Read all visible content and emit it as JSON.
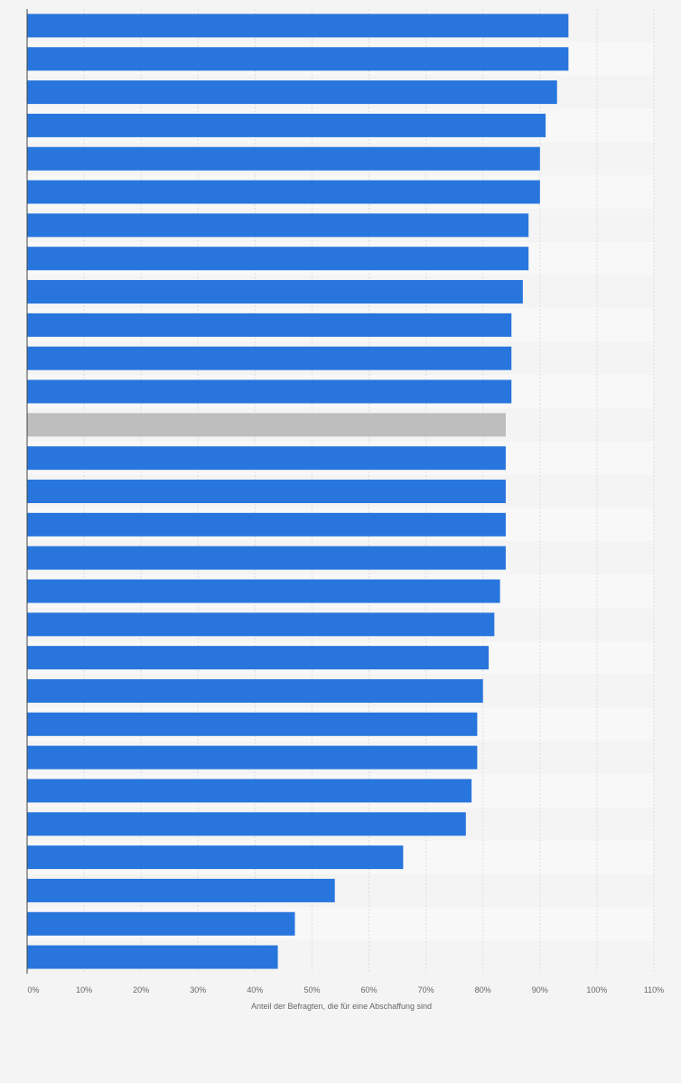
{
  "chart_data": {
    "type": "bar",
    "orientation": "horizontal",
    "xlabel": "Anteil der Befragten, die für eine Abschaffung sind",
    "xlim": [
      0,
      110
    ],
    "ticks": [
      0,
      10,
      20,
      30,
      40,
      50,
      60,
      70,
      80,
      90,
      100,
      110
    ],
    "tick_labels": [
      "0%",
      "10%",
      "20%",
      "30%",
      "40%",
      "50%",
      "60%",
      "70%",
      "80%",
      "90%",
      "100%",
      "110%"
    ],
    "grid": true,
    "values": [
      95,
      95,
      93,
      91,
      90,
      90,
      88,
      88,
      87,
      85,
      85,
      85,
      84,
      84,
      84,
      84,
      84,
      83,
      82,
      81,
      80,
      79,
      79,
      78,
      77,
      66,
      54,
      47,
      44
    ],
    "highlight_index": 12,
    "colors": {
      "bar": "#2876dd",
      "highlight": "#bebebe",
      "background": "#f4f4f4",
      "band_light": "#f8f8f8",
      "grid": "#dedede",
      "axis": "#444444",
      "text": "#666666"
    }
  }
}
